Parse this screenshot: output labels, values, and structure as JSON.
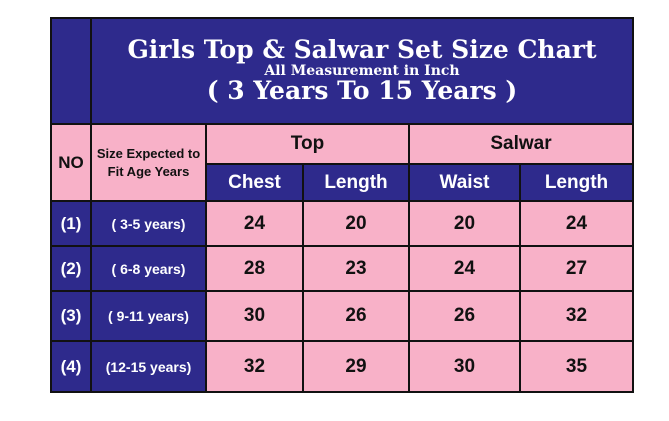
{
  "title": {
    "line1": "Girls Top & Salwar Set Size Chart",
    "line2": "All Measurement in Inch",
    "line3": "( 3 Years To 15 Years )"
  },
  "headers": {
    "no": "NO",
    "size": "Size Expected to Fit Age Years",
    "top": "Top",
    "salwar": "Salwar",
    "chest": "Chest",
    "top_length": "Length",
    "waist": "Waist",
    "salwar_length": "Length"
  },
  "rows": [
    {
      "no": "(1)",
      "age": "( 3-5 years)",
      "chest": "24",
      "top_length": "20",
      "waist": "20",
      "salwar_length": "24"
    },
    {
      "no": "(2)",
      "age": "( 6-8 years)",
      "chest": "28",
      "top_length": "23",
      "waist": "24",
      "salwar_length": "27"
    },
    {
      "no": "(3)",
      "age": "( 9-11 years)",
      "chest": "30",
      "top_length": "26",
      "waist": "26",
      "salwar_length": "32"
    },
    {
      "no": "(4)",
      "age": "(12-15 years)",
      "chest": "32",
      "top_length": "29",
      "waist": "30",
      "salwar_length": "35"
    }
  ],
  "colors": {
    "header_blue": "#2e2a8c",
    "cell_pink": "#f8b1c8"
  }
}
